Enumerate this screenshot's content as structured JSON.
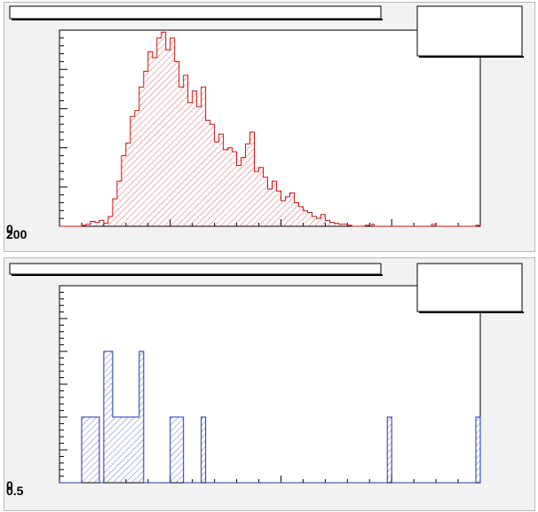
{
  "chart_data": [
    {
      "type": "histogram",
      "title": "",
      "xlabel": "",
      "ylabel": "",
      "x_range": [
        0,
        95
      ],
      "ylim": [
        0,
        200
      ],
      "y_tick_labels": [
        "0",
        "200"
      ],
      "legend_text": "",
      "style": {
        "line_color": "#cc1111",
        "fill_pattern": "diagonal-hatch"
      },
      "bins_count": 95,
      "values": [
        0,
        0,
        0,
        0,
        0,
        1,
        2,
        5,
        4,
        6,
        3,
        10,
        28,
        46,
        72,
        85,
        112,
        118,
        142,
        158,
        178,
        172,
        192,
        198,
        180,
        192,
        168,
        142,
        154,
        126,
        138,
        122,
        142,
        108,
        104,
        86,
        94,
        78,
        80,
        76,
        62,
        70,
        84,
        96,
        56,
        60,
        50,
        38,
        46,
        36,
        26,
        30,
        34,
        24,
        20,
        16,
        14,
        10,
        8,
        12,
        6,
        4,
        3,
        2,
        2,
        1,
        0,
        0,
        0,
        1,
        2,
        0,
        0,
        0,
        0,
        0,
        0,
        0,
        0,
        0,
        0,
        0,
        0,
        0,
        2,
        0,
        0,
        0,
        0,
        0,
        0,
        0,
        0,
        0,
        1
      ]
    },
    {
      "type": "histogram",
      "title": "",
      "xlabel": "",
      "ylabel": "",
      "x_range": [
        0,
        95
      ],
      "ylim": [
        0,
        1.5
      ],
      "y_tick_labels": [
        "0",
        "0.5"
      ],
      "legend_text": "",
      "style": {
        "line_color": "#2233aa",
        "fill_pattern": "diagonal-hatch"
      },
      "bins_count": 95,
      "values": [
        0,
        0,
        0,
        0,
        0,
        0.5,
        0.5,
        0.5,
        0.5,
        0,
        1,
        1,
        0.5,
        0.5,
        0.5,
        0.5,
        0.5,
        0.5,
        1,
        0,
        0,
        0,
        0,
        0,
        0,
        0.5,
        0.5,
        0.5,
        0,
        0,
        0,
        0,
        0.5,
        0,
        0,
        0,
        0,
        0,
        0,
        0,
        0,
        0,
        0,
        0,
        0,
        0,
        0,
        0,
        0,
        0,
        0,
        0,
        0,
        0,
        0,
        0,
        0,
        0,
        0,
        0,
        0,
        0,
        0,
        0,
        0,
        0,
        0,
        0,
        0,
        0,
        0,
        0,
        0,
        0,
        0.5,
        0,
        0,
        0,
        0,
        0,
        0,
        0,
        0,
        0,
        0,
        0,
        0,
        0,
        0,
        0,
        0,
        0,
        0,
        0,
        0.5
      ]
    }
  ]
}
